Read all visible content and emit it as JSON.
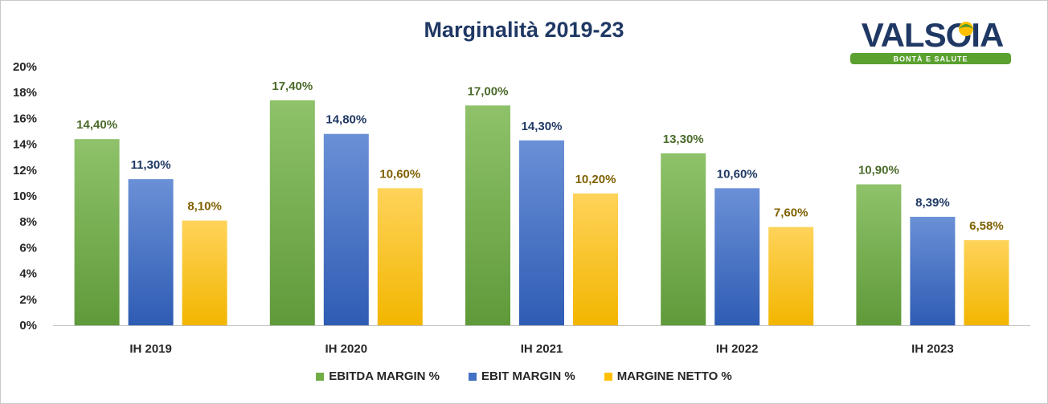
{
  "colors": {
    "ebitda": "#70ad47",
    "ebit": "#4472c4",
    "netto": "#ffc000",
    "label_ebitda": "#4a6a2a",
    "label_ebit": "#1f3864",
    "label_netto": "#7f6000"
  },
  "logo": {
    "brand": "VALSOIA",
    "tagline": "BONTÀ E SALUTE"
  },
  "chart_data": {
    "type": "bar",
    "title": "Marginalità 2019-23",
    "categories": [
      "IH 2019",
      "IH 2020",
      "IH 2021",
      "IH 2022",
      "IH 2023"
    ],
    "ylim": [
      0,
      20
    ],
    "yticks": [
      0,
      2,
      4,
      6,
      8,
      10,
      12,
      14,
      16,
      18,
      20
    ],
    "ytick_labels": [
      "0%",
      "2%",
      "4%",
      "6%",
      "8%",
      "10%",
      "12%",
      "14%",
      "16%",
      "18%",
      "20%"
    ],
    "grid": false,
    "legend_position": "bottom",
    "series": [
      {
        "name": "EBITDA MARGIN %",
        "values": [
          14.4,
          17.4,
          17.0,
          13.3,
          10.9
        ],
        "labels": [
          "14,40%",
          "17,40%",
          "17,00%",
          "13,30%",
          "10,90%"
        ]
      },
      {
        "name": "EBIT MARGIN %",
        "values": [
          11.3,
          14.8,
          14.3,
          10.6,
          8.39
        ],
        "labels": [
          "11,30%",
          "14,80%",
          "14,30%",
          "10,60%",
          "8,39%"
        ]
      },
      {
        "name": "MARGINE NETTO %",
        "values": [
          8.1,
          10.6,
          10.2,
          7.6,
          6.58
        ],
        "labels": [
          "8,10%",
          "10,60%",
          "10,20%",
          "7,60%",
          "6,58%"
        ]
      }
    ]
  }
}
